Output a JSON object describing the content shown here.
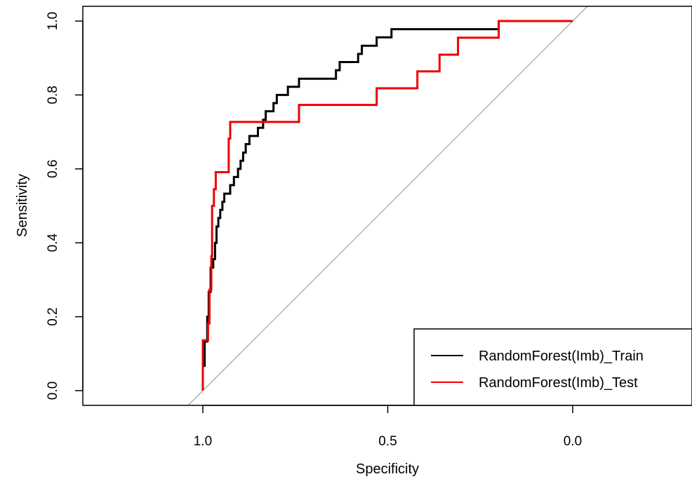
{
  "chart_data": {
    "type": "line",
    "title": "",
    "xlabel": "Specificity",
    "ylabel": "Sensitivity",
    "xlim": [
      1.32,
      -0.32
    ],
    "ylim": [
      -0.04,
      1.04
    ],
    "x_reversed": true,
    "grid": false,
    "x_ticks": [
      1.0,
      0.5,
      0.0
    ],
    "x_tick_labels": [
      "1.0",
      "0.5",
      "0.0"
    ],
    "y_ticks": [
      0.0,
      0.2,
      0.4,
      0.6,
      0.8,
      1.0
    ],
    "y_tick_labels": [
      "0.0",
      "0.2",
      "0.4",
      "0.6",
      "0.8",
      "1.0"
    ],
    "legend_position": "bottom-right",
    "reference_line": {
      "from": [
        1.0,
        0.0
      ],
      "to": [
        0.0,
        1.0
      ],
      "color": "#b3b3b3"
    },
    "series": [
      {
        "name": "RandomForest(Imb)_Train",
        "color": "#000000",
        "points": [
          [
            1.0,
            0.0
          ],
          [
            1.0,
            0.067
          ],
          [
            0.995,
            0.067
          ],
          [
            0.995,
            0.133
          ],
          [
            0.988,
            0.133
          ],
          [
            0.988,
            0.2
          ],
          [
            0.984,
            0.2
          ],
          [
            0.984,
            0.267
          ],
          [
            0.979,
            0.267
          ],
          [
            0.979,
            0.333
          ],
          [
            0.972,
            0.333
          ],
          [
            0.972,
            0.356
          ],
          [
            0.967,
            0.356
          ],
          [
            0.967,
            0.4
          ],
          [
            0.963,
            0.4
          ],
          [
            0.963,
            0.444
          ],
          [
            0.958,
            0.444
          ],
          [
            0.958,
            0.467
          ],
          [
            0.953,
            0.467
          ],
          [
            0.953,
            0.489
          ],
          [
            0.947,
            0.489
          ],
          [
            0.947,
            0.511
          ],
          [
            0.942,
            0.511
          ],
          [
            0.942,
            0.533
          ],
          [
            0.926,
            0.533
          ],
          [
            0.926,
            0.556
          ],
          [
            0.916,
            0.556
          ],
          [
            0.916,
            0.578
          ],
          [
            0.905,
            0.578
          ],
          [
            0.905,
            0.6
          ],
          [
            0.898,
            0.6
          ],
          [
            0.898,
            0.622
          ],
          [
            0.891,
            0.622
          ],
          [
            0.891,
            0.644
          ],
          [
            0.884,
            0.644
          ],
          [
            0.884,
            0.667
          ],
          [
            0.874,
            0.667
          ],
          [
            0.874,
            0.689
          ],
          [
            0.851,
            0.689
          ],
          [
            0.851,
            0.711
          ],
          [
            0.837,
            0.711
          ],
          [
            0.837,
            0.733
          ],
          [
            0.83,
            0.733
          ],
          [
            0.83,
            0.756
          ],
          [
            0.809,
            0.756
          ],
          [
            0.809,
            0.778
          ],
          [
            0.8,
            0.778
          ],
          [
            0.8,
            0.8
          ],
          [
            0.77,
            0.8
          ],
          [
            0.77,
            0.822
          ],
          [
            0.74,
            0.822
          ],
          [
            0.74,
            0.844
          ],
          [
            0.64,
            0.844
          ],
          [
            0.64,
            0.867
          ],
          [
            0.63,
            0.867
          ],
          [
            0.63,
            0.889
          ],
          [
            0.58,
            0.889
          ],
          [
            0.58,
            0.911
          ],
          [
            0.57,
            0.911
          ],
          [
            0.57,
            0.933
          ],
          [
            0.53,
            0.933
          ],
          [
            0.53,
            0.956
          ],
          [
            0.49,
            0.956
          ],
          [
            0.49,
            0.978
          ],
          [
            0.2,
            0.978
          ],
          [
            0.2,
            1.0
          ],
          [
            0.0,
            1.0
          ]
        ]
      },
      {
        "name": "RandomForest(Imb)_Test",
        "color": "#ee0000",
        "points": [
          [
            1.0,
            0.0
          ],
          [
            1.0,
            0.136
          ],
          [
            0.986,
            0.136
          ],
          [
            0.986,
            0.182
          ],
          [
            0.982,
            0.182
          ],
          [
            0.982,
            0.273
          ],
          [
            0.977,
            0.273
          ],
          [
            0.977,
            0.364
          ],
          [
            0.975,
            0.364
          ],
          [
            0.975,
            0.5
          ],
          [
            0.97,
            0.5
          ],
          [
            0.97,
            0.545
          ],
          [
            0.965,
            0.545
          ],
          [
            0.965,
            0.591
          ],
          [
            0.93,
            0.591
          ],
          [
            0.93,
            0.682
          ],
          [
            0.926,
            0.682
          ],
          [
            0.926,
            0.727
          ],
          [
            0.74,
            0.727
          ],
          [
            0.74,
            0.773
          ],
          [
            0.53,
            0.773
          ],
          [
            0.53,
            0.818
          ],
          [
            0.42,
            0.818
          ],
          [
            0.42,
            0.864
          ],
          [
            0.36,
            0.864
          ],
          [
            0.36,
            0.909
          ],
          [
            0.31,
            0.909
          ],
          [
            0.31,
            0.955
          ],
          [
            0.2,
            0.955
          ],
          [
            0.2,
            1.0
          ],
          [
            0.0,
            1.0
          ]
        ]
      }
    ]
  }
}
